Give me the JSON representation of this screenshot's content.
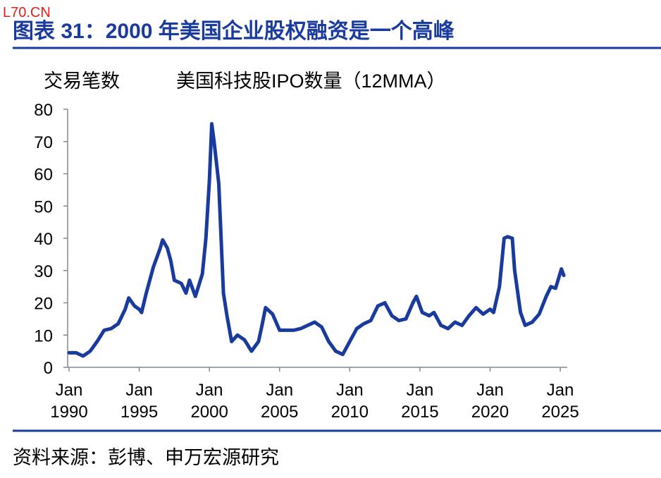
{
  "watermark": "L70.CN",
  "chart_data": {
    "type": "line",
    "title": "图表 31：2000 年美国企业股权融资是一个高峰",
    "y_label": "交易笔数",
    "source": "资料来源：彭博、申万宏源研究",
    "x": [
      "1990-01",
      "1990-07",
      "1991-01",
      "1991-07",
      "1992-01",
      "1992-07",
      "1993-01",
      "1993-07",
      "1994-01",
      "1994-04",
      "1994-09",
      "1995-01",
      "1995-03",
      "1995-07",
      "1996-01",
      "1996-07",
      "1996-09",
      "1997-01",
      "1997-04",
      "1997-07",
      "1998-01",
      "1998-05",
      "1998-08",
      "1999-01",
      "1999-07",
      "1999-10",
      "2000-01",
      "2000-03",
      "2000-05",
      "2000-09",
      "2001-01",
      "2001-04",
      "2001-08",
      "2002-01",
      "2002-07",
      "2003-01",
      "2003-07",
      "2003-10",
      "2004-01",
      "2004-07",
      "2005-01",
      "2005-07",
      "2006-01",
      "2006-07",
      "2007-01",
      "2007-07",
      "2008-01",
      "2008-07",
      "2009-01",
      "2009-07",
      "2010-01",
      "2010-07",
      "2011-01",
      "2011-07",
      "2012-01",
      "2012-07",
      "2013-01",
      "2013-07",
      "2014-01",
      "2014-07",
      "2014-10",
      "2015-03",
      "2015-09",
      "2016-01",
      "2016-07",
      "2017-01",
      "2017-07",
      "2018-01",
      "2018-07",
      "2019-01",
      "2019-07",
      "2020-01",
      "2020-04",
      "2020-09",
      "2021-01",
      "2021-04",
      "2021-08",
      "2021-10",
      "2022-03",
      "2022-07",
      "2023-01",
      "2023-07",
      "2024-01",
      "2024-05",
      "2024-09",
      "2025-02",
      "2025-04"
    ],
    "series": [
      {
        "name": "美国科技股IPO数量（12MMA）",
        "color": "#1a3b9e",
        "values": [
          4.5,
          4.5,
          3.5,
          5,
          8,
          11.5,
          12,
          13.5,
          18,
          21.5,
          19,
          18,
          17,
          23,
          31,
          37,
          39.5,
          37,
          33,
          27,
          26,
          23,
          27,
          22,
          29,
          40,
          58,
          75.5,
          70,
          57,
          23,
          16,
          8,
          10,
          8.5,
          5,
          8,
          13,
          18.5,
          16.5,
          11.5,
          11.5,
          11.5,
          12,
          13,
          14,
          12.5,
          8,
          5,
          4,
          8,
          12,
          13.5,
          14.5,
          19,
          20,
          16,
          14.5,
          15,
          20,
          22,
          17,
          16,
          17,
          13,
          12,
          14,
          13,
          16,
          18.5,
          16.5,
          18,
          17,
          25,
          40,
          40.5,
          40,
          30,
          17,
          13,
          14,
          16.5,
          22,
          25,
          24.5,
          30.5,
          28.5
        ]
      }
    ],
    "xlim": [
      "1990-01",
      "2025-07"
    ],
    "xticks": [
      {
        "value": "1990-01",
        "label": "Jan 1990"
      },
      {
        "value": "1995-01",
        "label": "Jan 1995"
      },
      {
        "value": "2000-01",
        "label": "Jan 2000"
      },
      {
        "value": "2005-01",
        "label": "Jan 2005"
      },
      {
        "value": "2010-01",
        "label": "Jan 2010"
      },
      {
        "value": "2015-01",
        "label": "Jan 2015"
      },
      {
        "value": "2020-01",
        "label": "Jan 2020"
      },
      {
        "value": "2025-01",
        "label": "Jan 2025"
      }
    ],
    "ylim": [
      0,
      80
    ],
    "yticks": [
      0,
      10,
      20,
      30,
      40,
      50,
      60,
      70,
      80
    ]
  }
}
